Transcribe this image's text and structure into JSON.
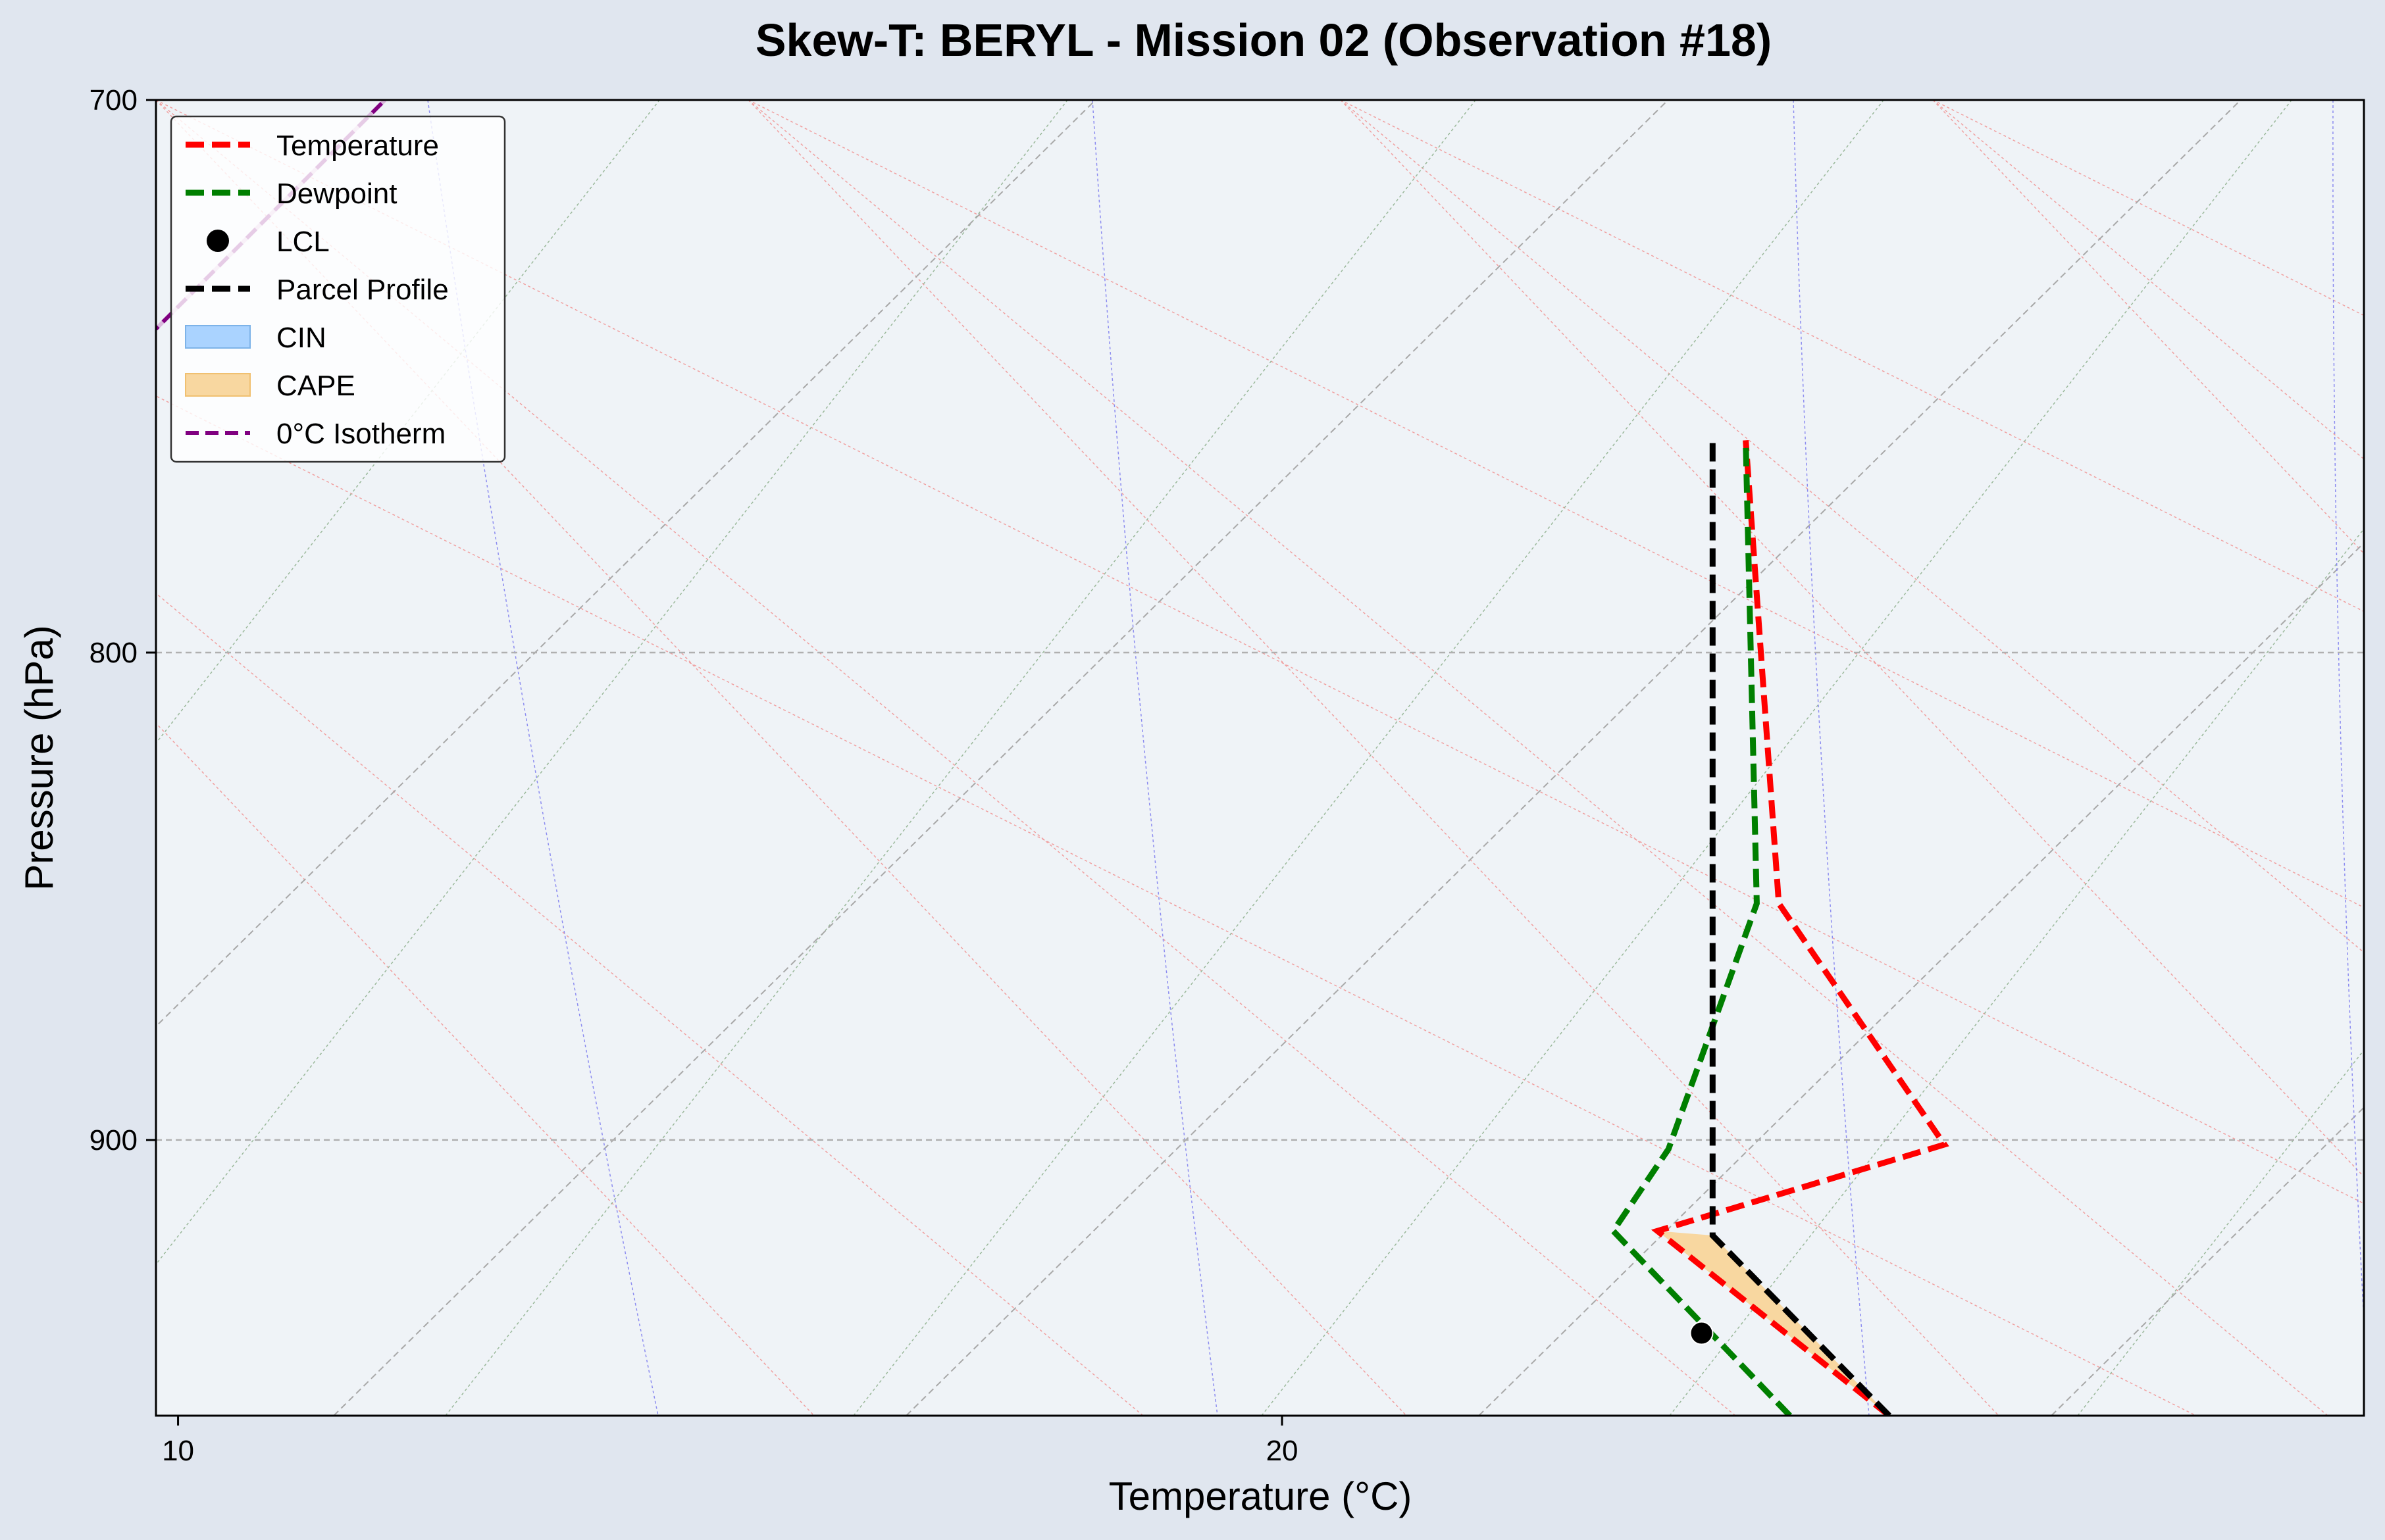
{
  "chart_data": {
    "type": "line",
    "title": "Skew-T: BERYL - Mission 02 (Observation #18)",
    "xlabel": "Temperature (°C)",
    "ylabel": "Pressure (hPa)",
    "xlim": [
      9.8,
      29.8
    ],
    "ylim": [
      962,
      700
    ],
    "y_scale": "log",
    "y_inverted": true,
    "x_ticks": [
      10,
      20
    ],
    "y_ticks": [
      700,
      800,
      900
    ],
    "grid": true,
    "legend_position": "upper-left",
    "legend": [
      "Temperature",
      "Dewpoint",
      "LCL",
      "Parcel Profile",
      "CIN",
      "CAPE",
      "0°C Isotherm"
    ],
    "colors": {
      "temperature": "#ff0000",
      "dewpoint": "#007f00",
      "parcel": "#000000",
      "lcl": "#000000",
      "cin_fill": "#aad3ff",
      "cape_fill": "#f8d7a0",
      "isotherm_0c": "#800080",
      "plot_bg": "#eff3f7",
      "figure_bg": "#e0e6ef"
    },
    "series": [
      {
        "name": "Temperature",
        "style": "dashed",
        "points": [
          [
            25.5,
            962
          ],
          [
            23.4,
            920
          ],
          [
            26.0,
            901
          ],
          [
            24.5,
            850
          ],
          [
            24.2,
            760
          ]
        ]
      },
      {
        "name": "Dewpoint",
        "style": "dashed",
        "points": [
          [
            24.6,
            962
          ],
          [
            23.0,
            920
          ],
          [
            23.5,
            902
          ],
          [
            24.3,
            850
          ],
          [
            24.2,
            760
          ]
        ]
      },
      {
        "name": "Parcel Profile",
        "style": "dashed",
        "points": [
          [
            25.5,
            962
          ],
          [
            23.9,
            921
          ],
          [
            23.9,
            760
          ]
        ]
      }
    ],
    "lcl": {
      "name": "LCL",
      "temperature": 23.8,
      "pressure": 943
    },
    "cape_region": {
      "name": "CAPE",
      "pressure_range": [
        962,
        921
      ]
    },
    "cin_region": {
      "name": "CIN"
    },
    "isotherm_0c": {
      "name": "0°C Isotherm"
    }
  }
}
